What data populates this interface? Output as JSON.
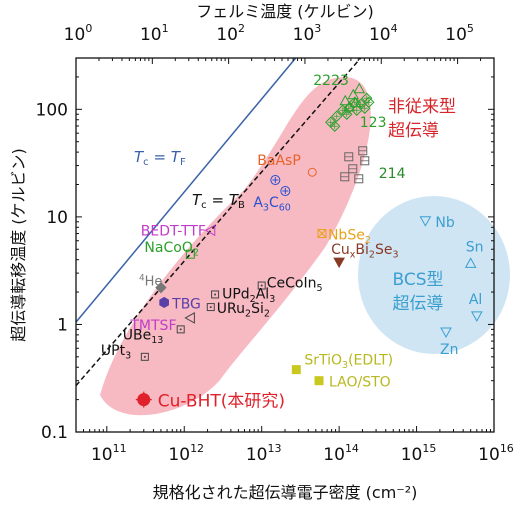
{
  "chart_data": {
    "type": "scatter",
    "title": "",
    "xlabel": "規格化された超伝導電子密度 (cm⁻²)",
    "ylabel": "超伝導転移温度 (ケルビン)",
    "x2label": "フェルミ温度 (ケルビン)",
    "xscale": "log",
    "yscale": "log",
    "xlim": [
      40000000000.0,
      1e+16
    ],
    "ylim": [
      0.1,
      300
    ],
    "x2lim": [
      1,
      300000
    ],
    "x_ticks": [
      {
        "value": 100000000000.0,
        "base": "10",
        "exp": "11"
      },
      {
        "value": 1000000000000.0,
        "base": "10",
        "exp": "12"
      },
      {
        "value": 10000000000000.0,
        "base": "10",
        "exp": "13"
      },
      {
        "value": 100000000000000.0,
        "base": "10",
        "exp": "14"
      },
      {
        "value": 1000000000000000.0,
        "base": "10",
        "exp": "15"
      },
      {
        "value": 1e+16,
        "base": "10",
        "exp": "16"
      }
    ],
    "x2_ticks": [
      {
        "value": 1,
        "base": "10",
        "exp": "0"
      },
      {
        "value": 10,
        "base": "10",
        "exp": "1"
      },
      {
        "value": 100,
        "base": "10",
        "exp": "2"
      },
      {
        "value": 1000,
        "base": "10",
        "exp": "3"
      },
      {
        "value": 10000,
        "base": "10",
        "exp": "4"
      },
      {
        "value": 100000,
        "base": "10",
        "exp": "5"
      }
    ],
    "y_ticks": [
      {
        "value": 0.1,
        "label": "0.1"
      },
      {
        "value": 1,
        "label": "1"
      },
      {
        "value": 10,
        "label": "10"
      },
      {
        "value": 100,
        "label": "100"
      }
    ],
    "reference_lines": [
      {
        "name": "TF",
        "label_main": "T",
        "label_sub": "c",
        "label_rhs": "T",
        "label_rhs_sub": "F",
        "style": "solid",
        "color": "#3a62a8",
        "points": [
          [
            40000000000.0,
            1.05
          ],
          [
            27500000000000.0,
            300
          ]
        ]
      },
      {
        "name": "TB",
        "label_main": "T",
        "label_sub": "c",
        "label_rhs": "T",
        "label_rhs_sub": "B",
        "style": "dashed",
        "color": "#111111",
        "points": [
          [
            40000000000.0,
            0.27
          ],
          [
            190000000000000.0,
            300
          ]
        ]
      }
    ],
    "regions": [
      {
        "name": "unconventional",
        "label_lines": [
          "非従来型",
          "超伝導"
        ],
        "color": "#f6b3bc",
        "text_color": "#d7262b"
      },
      {
        "name": "bcs",
        "label_lines": [
          "BCS型",
          "超伝導"
        ],
        "color": "#cfe5f4",
        "text_color": "#3b9fd0"
      }
    ],
    "series": [
      {
        "name": "Cu-BHT(本研究)",
        "x": 300000000000.0,
        "y": 0.2,
        "marker": "circle-filled",
        "color": "#e0202a",
        "label_color": "#e0202a",
        "highlight": true
      },
      {
        "name": "UPt3",
        "x": 310000000000.0,
        "y": 0.5,
        "marker": "square-dot-open",
        "color": "#444444",
        "label_color": "#111111"
      },
      {
        "name": "UBe13",
        "x": 900000000000.0,
        "y": 0.9,
        "marker": "square-dot-open",
        "color": "#444444",
        "label_color": "#111111"
      },
      {
        "name": "URu2Si2",
        "x": 2200000000000.0,
        "y": 1.45,
        "marker": "square-dot-open",
        "color": "#444444",
        "label_color": "#111111"
      },
      {
        "name": "UPd2Al3",
        "x": 2500000000000.0,
        "y": 1.9,
        "marker": "square-dot-open",
        "color": "#444444",
        "label_color": "#111111"
      },
      {
        "name": "CeCoIn5",
        "x": 10000000000000.0,
        "y": 2.3,
        "marker": "square-dot-open",
        "color": "#444444",
        "label_color": "#111111"
      },
      {
        "name": "TMTSF",
        "x": 1200000000000.0,
        "y": 1.15,
        "marker": "triangle-left-open",
        "color": "#444444",
        "label_color": "#c23cc8"
      },
      {
        "name": "TBG",
        "x": 550000000000.0,
        "y": 1.6,
        "marker": "hexagon-filled",
        "color": "#5a3fa8",
        "label_color": "#5a3fa8"
      },
      {
        "name": "4He",
        "x": 500000000000.0,
        "y": 2.2,
        "marker": "diamond-filled",
        "color": "#777777",
        "label_color": "#777777"
      },
      {
        "name": "NaCoO2",
        "x": 1200000000000.0,
        "y": 4.5,
        "marker": "square-open",
        "color": "#2aa02a",
        "label_color": "#2aa02a"
      },
      {
        "name": "BEDT-TTF",
        "x": 2200000000000.0,
        "y": 7.5,
        "marker": "triangle-left-open",
        "color": "#c23cc8",
        "label_color": "#c23cc8"
      },
      {
        "name": "CuxBi2Se3",
        "x": 100000000000000.0,
        "y": 3.8,
        "marker": "triangle-down-filled",
        "color": "#8a3a24",
        "label_color": "#8a3a24"
      },
      {
        "name": "NbSe2",
        "x": 60000000000000.0,
        "y": 7,
        "marker": "square-x-open",
        "color": "#e8a21e",
        "label_color": "#e8a21e"
      },
      {
        "name": "A3C60",
        "x": 15000000000000.0,
        "y": 22,
        "marker": "circle-plus-open",
        "color": "#2a4fcf",
        "label_color": "#2a4fcf"
      },
      {
        "name": "BaAsP",
        "x": 45000000000000.0,
        "y": 26,
        "marker": "circle-open",
        "color": "#e8622a",
        "label_color": "#e8622a"
      },
      {
        "name": "214",
        "x": 150000000000000.0,
        "y": 28,
        "marker": "square-lines-open",
        "color": "#666666",
        "label_color": "#2a8a2a"
      },
      {
        "name": "123",
        "x": 150000000000000.0,
        "y": 90,
        "marker": "diamond-cross-open",
        "color": "#2aa02a",
        "label_color": "#2aa02a"
      },
      {
        "name": "2223",
        "x": 120000000000000.0,
        "y": 120,
        "marker": "triangle-up-open",
        "color": "#2aa02a",
        "label_color": "#2aa02a"
      },
      {
        "name": "SrTiO3(EDLT)",
        "x": 28000000000000.0,
        "y": 0.38,
        "marker": "square-filled",
        "color": "#c8c81e",
        "label_color": "#b8b81e"
      },
      {
        "name": "LAO/STO",
        "x": 55000000000000.0,
        "y": 0.3,
        "marker": "square-filled",
        "color": "#c8c81e",
        "label_color": "#b8b81e"
      },
      {
        "name": "Nb",
        "x": 1300000000000000.0,
        "y": 9.2,
        "marker": "triangle-down-open",
        "color": "#3b9fd0",
        "label_color": "#3b9fd0"
      },
      {
        "name": "Sn",
        "x": 5000000000000000.0,
        "y": 3.7,
        "marker": "triangle-up-open",
        "color": "#3b9fd0",
        "label_color": "#3b9fd0"
      },
      {
        "name": "Al",
        "x": 6000000000000000.0,
        "y": 1.2,
        "marker": "triangle-down-open",
        "color": "#3b9fd0",
        "label_color": "#3b9fd0"
      },
      {
        "name": "Zn",
        "x": 2400000000000000.0,
        "y": 0.85,
        "marker": "triangle-down-open",
        "color": "#3b9fd0",
        "label_color": "#3b9fd0"
      }
    ]
  }
}
